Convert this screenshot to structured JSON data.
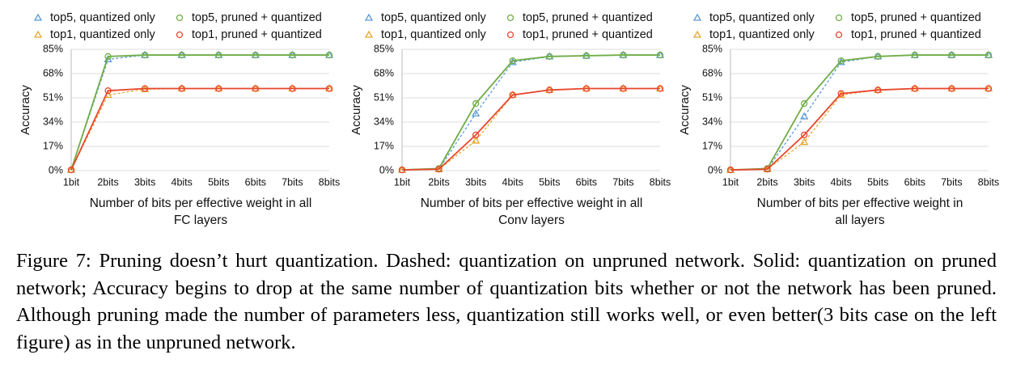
{
  "chart_data": [
    {
      "type": "line",
      "ylabel": "Accuracy",
      "xlabel": [
        "Number of bits per effective weight in all",
        "FC layers"
      ],
      "categories": [
        "1bit",
        "2bits",
        "3bits",
        "4bits",
        "5bits",
        "6bits",
        "7bits",
        "8bits"
      ],
      "ylim": [
        0,
        85
      ],
      "yticks": [
        {
          "value": 0,
          "label": "0%"
        },
        {
          "value": 17,
          "label": "17%"
        },
        {
          "value": 34,
          "label": "34%"
        },
        {
          "value": 51,
          "label": "51%"
        },
        {
          "value": 68,
          "label": "68%"
        },
        {
          "value": 85,
          "label": "85%"
        }
      ],
      "grid": true,
      "series": [
        {
          "name": "top5, quantized only",
          "color": "#5b9bd5",
          "dashed": true,
          "marker": "triangle",
          "values": [
            0.5,
            78,
            81,
            81,
            81,
            81,
            81,
            81
          ]
        },
        {
          "name": "top5, pruned + quantized",
          "color": "#70ad47",
          "dashed": false,
          "marker": "circle",
          "values": [
            0.5,
            80,
            81,
            81,
            81,
            81,
            81,
            81
          ]
        },
        {
          "name": "top1, quantized only",
          "color": "#e6a82d",
          "dashed": true,
          "marker": "triangle",
          "values": [
            0.5,
            53,
            57,
            57.5,
            57.5,
            57.5,
            57.5,
            57.5
          ]
        },
        {
          "name": "top1, pruned + quantized",
          "color": "#e8452c",
          "dashed": false,
          "marker": "circle",
          "values": [
            0.5,
            56,
            57.5,
            57.5,
            57.5,
            57.5,
            57.5,
            57.5
          ]
        }
      ]
    },
    {
      "type": "line",
      "ylabel": "Accuracy",
      "xlabel": [
        "Number of bits per effective weight in all",
        "Conv layers"
      ],
      "categories": [
        "1bit",
        "2bits",
        "3bits",
        "4bits",
        "5bits",
        "6bits",
        "7bits",
        "8bits"
      ],
      "ylim": [
        0,
        85
      ],
      "yticks": [
        {
          "value": 0,
          "label": "0%"
        },
        {
          "value": 17,
          "label": "17%"
        },
        {
          "value": 34,
          "label": "34%"
        },
        {
          "value": 51,
          "label": "51%"
        },
        {
          "value": 68,
          "label": "68%"
        },
        {
          "value": 85,
          "label": "85%"
        }
      ],
      "grid": true,
      "series": [
        {
          "name": "top5, quantized only",
          "color": "#5b9bd5",
          "dashed": true,
          "marker": "triangle",
          "values": [
            0.5,
            1,
            40,
            76,
            80,
            80.5,
            81,
            81
          ]
        },
        {
          "name": "top5, pruned + quantized",
          "color": "#70ad47",
          "dashed": false,
          "marker": "circle",
          "values": [
            0.5,
            1.5,
            47,
            77,
            80,
            80.5,
            81,
            81
          ]
        },
        {
          "name": "top1, quantized only",
          "color": "#e6a82d",
          "dashed": true,
          "marker": "triangle",
          "values": [
            0.5,
            1,
            21,
            53,
            56.5,
            57.5,
            57.5,
            57.5
          ]
        },
        {
          "name": "top1, pruned + quantized",
          "color": "#e8452c",
          "dashed": false,
          "marker": "circle",
          "values": [
            0.5,
            1,
            25,
            53,
            56.5,
            57.5,
            57.5,
            57.5
          ]
        }
      ]
    },
    {
      "type": "line",
      "ylabel": "Accuracy",
      "xlabel": [
        "Number of bits per effective weight in",
        "all layers"
      ],
      "categories": [
        "1bit",
        "2bits",
        "3bits",
        "4bits",
        "5bits",
        "6bits",
        "7bits",
        "8bits"
      ],
      "ylim": [
        0,
        85
      ],
      "yticks": [
        {
          "value": 0,
          "label": "0%"
        },
        {
          "value": 17,
          "label": "17%"
        },
        {
          "value": 34,
          "label": "34%"
        },
        {
          "value": 51,
          "label": "51%"
        },
        {
          "value": 68,
          "label": "68%"
        },
        {
          "value": 85,
          "label": "85%"
        }
      ],
      "grid": true,
      "series": [
        {
          "name": "top5, quantized only",
          "color": "#5b9bd5",
          "dashed": true,
          "marker": "triangle",
          "values": [
            0.5,
            1,
            38,
            76,
            80,
            81,
            81,
            81
          ]
        },
        {
          "name": "top5, pruned + quantized",
          "color": "#70ad47",
          "dashed": false,
          "marker": "circle",
          "values": [
            0.5,
            1.5,
            47,
            77,
            80,
            81,
            81,
            81
          ]
        },
        {
          "name": "top1, quantized only",
          "color": "#e6a82d",
          "dashed": true,
          "marker": "triangle",
          "values": [
            0.5,
            1,
            20,
            53,
            56.5,
            57.5,
            57.5,
            57.5
          ]
        },
        {
          "name": "top1, pruned + quantized",
          "color": "#e8452c",
          "dashed": false,
          "marker": "circle",
          "values": [
            0.5,
            1,
            25,
            54,
            56.5,
            57.5,
            57.5,
            57.5
          ]
        }
      ]
    }
  ],
  "caption": "Figure 7: Pruning doesn’t hurt quantization. Dashed: quantization on unpruned network. Solid: quantization on pruned network; Accuracy begins to drop at the same number of quantization bits whether or not the network has been pruned. Although pruning made the number of parameters less, quantization still works well, or even better(3 bits case on the left figure) as in the unpruned network."
}
